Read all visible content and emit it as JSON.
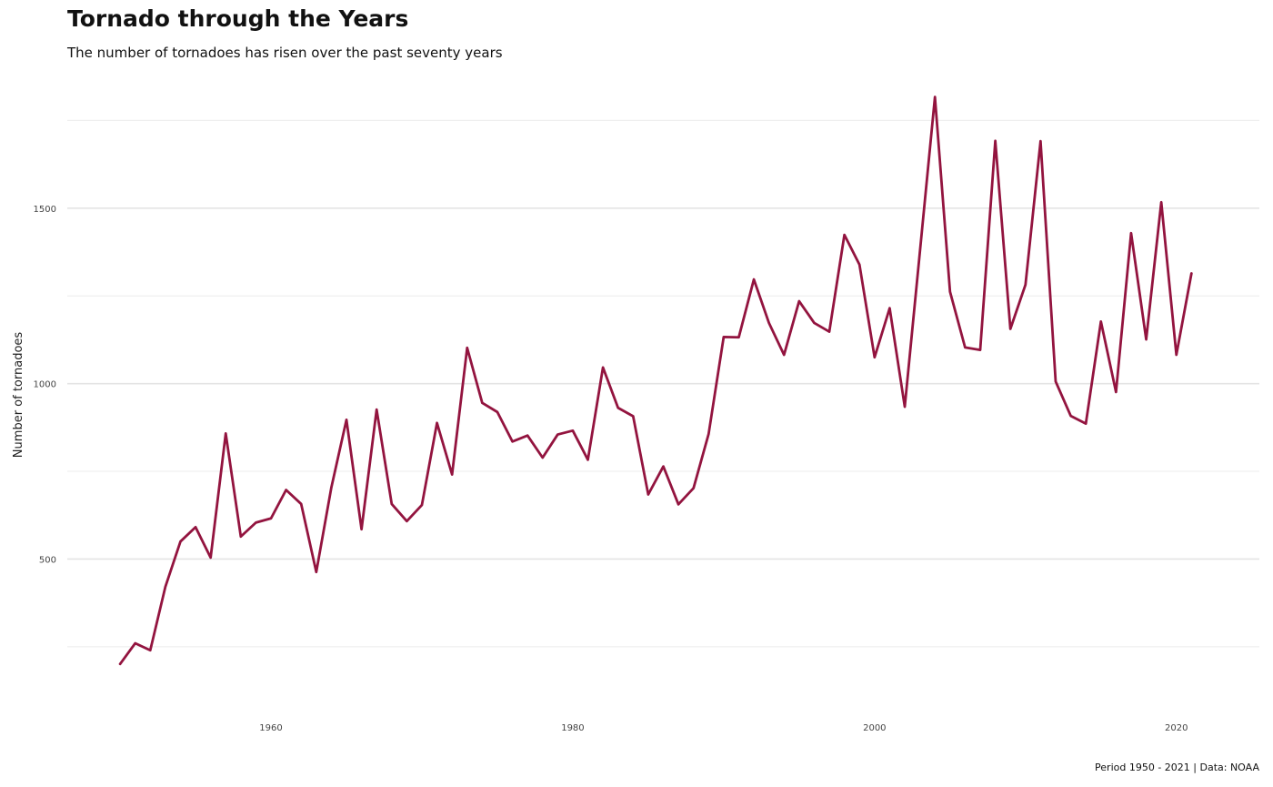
{
  "chart_data": {
    "type": "line",
    "title": "Tornado through the Years",
    "subtitle": "The number of tornadoes has risen over the past seventy years",
    "caption": "Period 1950 - 2021 | Data: NOAA",
    "xlabel": "",
    "ylabel": "Number of tornadoes",
    "xlim": [
      1946.5,
      2025.5
    ],
    "ylim": [
      50,
      1860
    ],
    "x_ticks": [
      1960,
      1980,
      2000,
      2020
    ],
    "y_ticks": [
      500,
      1000,
      1500
    ],
    "grid": true,
    "line_color": "#93143f",
    "series": [
      {
        "x": [
          1950,
          1951,
          1952,
          1953,
          1954,
          1955,
          1956,
          1957,
          1958,
          1959,
          1960,
          1961,
          1962,
          1963,
          1964,
          1965,
          1966,
          1967,
          1968,
          1969,
          1970,
          1971,
          1972,
          1973,
          1974,
          1975,
          1976,
          1977,
          1978,
          1979,
          1980,
          1981,
          1982,
          1983,
          1984,
          1985,
          1986,
          1987,
          1988,
          1989,
          1990,
          1991,
          1992,
          1993,
          1994,
          1995,
          1996,
          1997,
          1998,
          1999,
          2000,
          2001,
          2002,
          2003,
          2004,
          2005,
          2006,
          2007,
          2008,
          2009,
          2010,
          2011,
          2012,
          2013,
          2014,
          2015,
          2016,
          2017,
          2018,
          2019,
          2020,
          2021
        ],
        "values": [
          201,
          260,
          240,
          421,
          550,
          591,
          504,
          858,
          564,
          604,
          616,
          697,
          657,
          463,
          704,
          897,
          585,
          926,
          657,
          608,
          654,
          888,
          741,
          1102,
          945,
          919,
          835,
          852,
          789,
          855,
          866,
          783,
          1046,
          931,
          907,
          684,
          764,
          656,
          702,
          856,
          1133,
          1132,
          1297,
          1173,
          1082,
          1235,
          1173,
          1148,
          1424,
          1339,
          1075,
          1215,
          934,
          1374,
          1817,
          1262,
          1103,
          1096,
          1692,
          1156,
          1282,
          1691,
          1006,
          908,
          886,
          1177,
          976,
          1429,
          1126,
          1517,
          1082,
          1314
        ]
      }
    ]
  }
}
